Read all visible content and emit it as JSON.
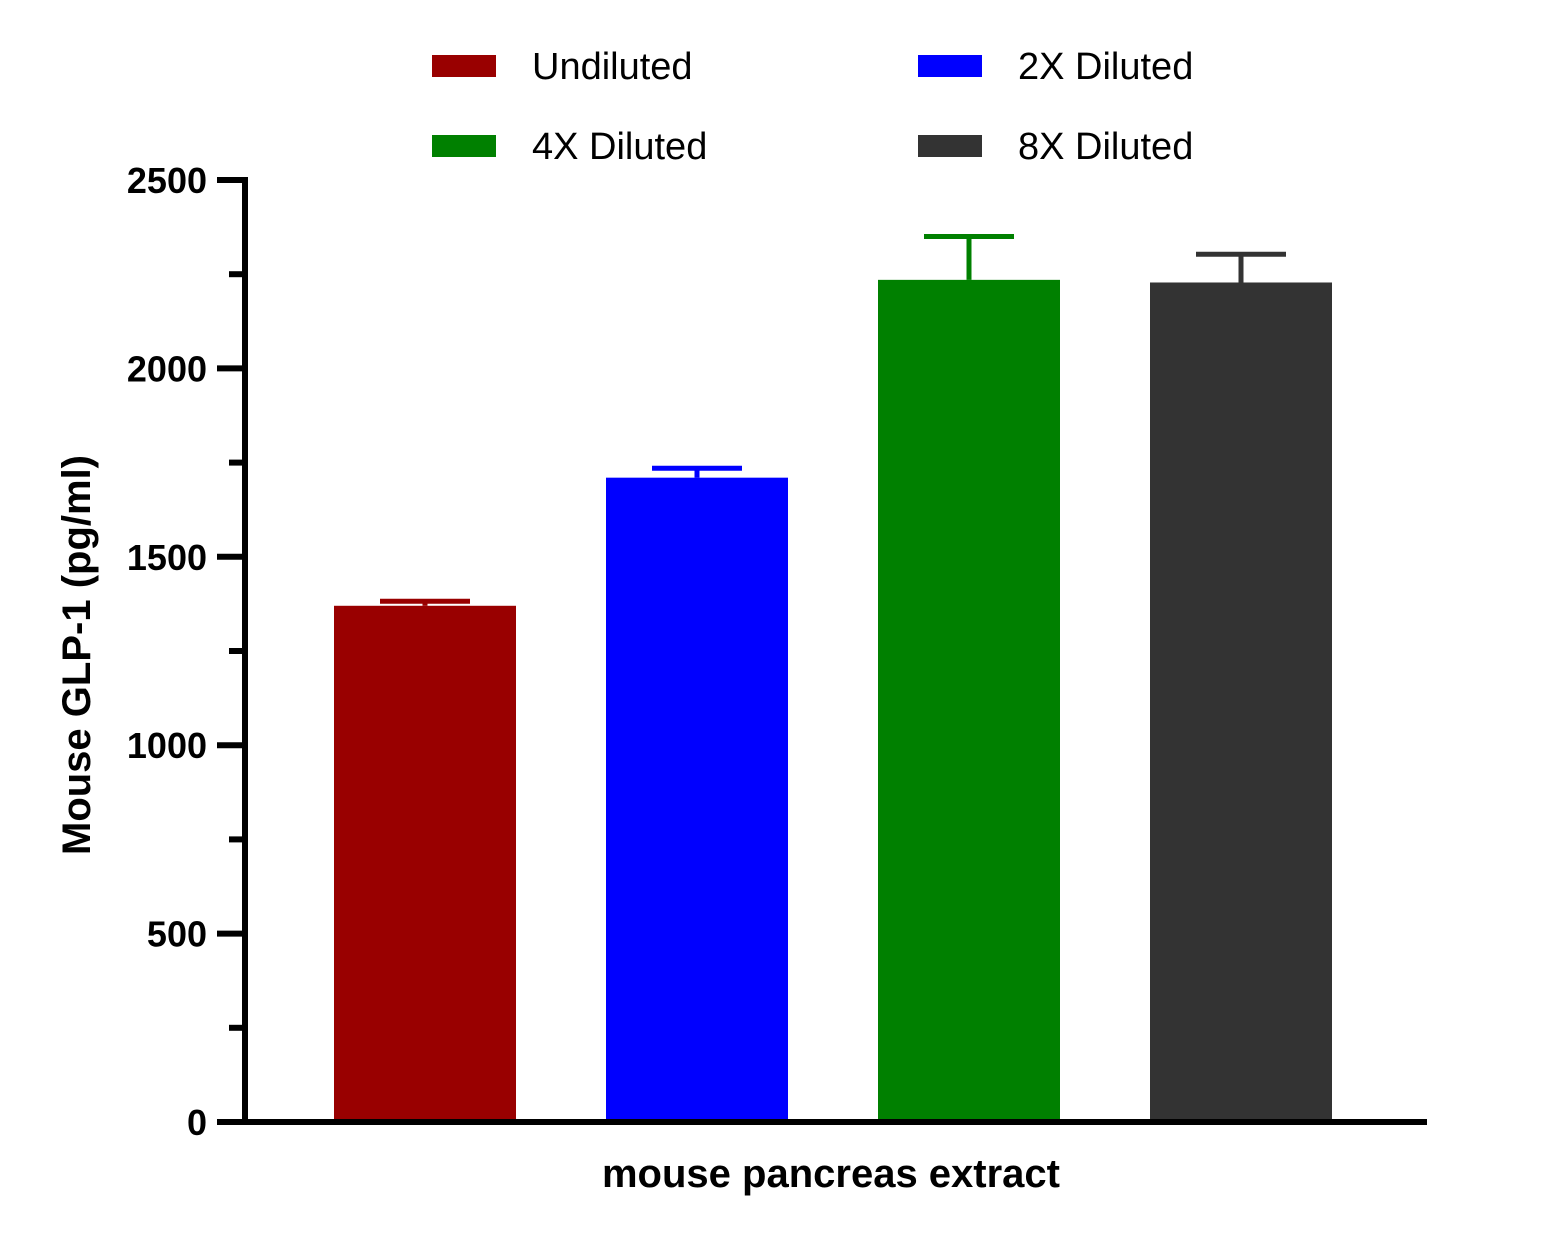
{
  "chart_data": {
    "type": "bar",
    "xlabel": "mouse pancreas extract",
    "ylabel": "Mouse GLP-1 (pg/ml)",
    "ylim": [
      0,
      2500
    ],
    "yticks": [
      0,
      500,
      1000,
      1500,
      2000,
      2500
    ],
    "y_minor_ticks": [
      250,
      750,
      1250,
      1750,
      2250
    ],
    "grid": false,
    "legend": "top",
    "series": [
      {
        "name": "Undiluted",
        "value": 1370,
        "error": 12,
        "color": "#990000"
      },
      {
        "name": "2X Diluted",
        "value": 1710,
        "error": 25,
        "color": "#0000ff"
      },
      {
        "name": "4X Diluted",
        "value": 2235,
        "error": 115,
        "color": "#008000"
      },
      {
        "name": "8X Diluted",
        "value": 2228,
        "error": 75,
        "color": "#333333"
      }
    ]
  }
}
